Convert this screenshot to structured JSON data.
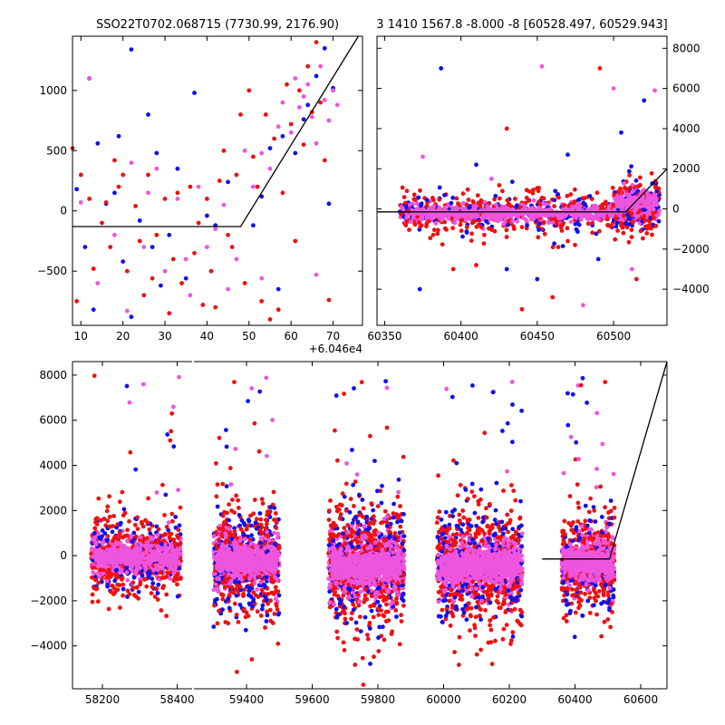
{
  "titles": {
    "left": "SSO22T0702.068715 (7730.99, 2176.90)",
    "right": "3 1410 1567.8 -8.000 -8 [60528.497, 60529.943]"
  },
  "colors": {
    "blue": "#1010ee",
    "red": "#ee1111",
    "magenta": "#ee55dd",
    "line": "#000000"
  },
  "chart_data": [
    {
      "type": "scatter",
      "panel": "top-left",
      "xlim": [
        8,
        77
      ],
      "ylim": [
        -950,
        1450
      ],
      "x_offset_label": "+6.046e4",
      "x_ticks": [
        10,
        20,
        30,
        40,
        50,
        60,
        70
      ],
      "y_ticks": [
        -500,
        0,
        500,
        1000
      ],
      "y_axis_side": "left",
      "series": [
        {
          "color": "blue",
          "points": [
            [
              22,
              1340
            ],
            [
              12,
              1100
            ],
            [
              37,
              980
            ],
            [
              26,
              800
            ],
            [
              19,
              620
            ],
            [
              14,
              560
            ],
            [
              28,
              480
            ],
            [
              33,
              350
            ],
            [
              45,
              240
            ],
            [
              9,
              180
            ],
            [
              16,
              60
            ],
            [
              24,
              -80
            ],
            [
              31,
              -200
            ],
            [
              42,
              -120
            ],
            [
              11,
              -300
            ],
            [
              20,
              -420
            ],
            [
              35,
              -560
            ],
            [
              29,
              -620
            ],
            [
              13,
              -820
            ],
            [
              22,
              -880
            ],
            [
              53,
              120
            ],
            [
              55,
              520
            ],
            [
              58,
              620
            ],
            [
              61,
              480
            ],
            [
              64,
              880
            ],
            [
              66,
              1120
            ],
            [
              68,
              1350
            ],
            [
              70,
              1020
            ],
            [
              63,
              760
            ],
            [
              69,
              60
            ],
            [
              57,
              -650
            ],
            [
              51,
              -120
            ],
            [
              40,
              -40
            ],
            [
              18,
              150
            ],
            [
              27,
              -300
            ]
          ]
        },
        {
          "color": "red",
          "points": [
            [
              8,
              520
            ],
            [
              10,
              300
            ],
            [
              12,
              100
            ],
            [
              15,
              -100
            ],
            [
              17,
              -300
            ],
            [
              19,
              200
            ],
            [
              21,
              -500
            ],
            [
              23,
              40
            ],
            [
              25,
              -700
            ],
            [
              26,
              300
            ],
            [
              28,
              -200
            ],
            [
              30,
              100
            ],
            [
              32,
              -400
            ],
            [
              34,
              -600
            ],
            [
              36,
              200
            ],
            [
              38,
              -100
            ],
            [
              40,
              100
            ],
            [
              42,
              -800
            ],
            [
              44,
              500
            ],
            [
              45,
              -200
            ],
            [
              47,
              300
            ],
            [
              48,
              800
            ],
            [
              49,
              -600
            ],
            [
              50,
              1000
            ],
            [
              52,
              200
            ],
            [
              53,
              -750
            ],
            [
              54,
              800
            ],
            [
              56,
              600
            ],
            [
              58,
              150
            ],
            [
              59,
              1050
            ],
            [
              60,
              720
            ],
            [
              61,
              -250
            ],
            [
              62,
              1000
            ],
            [
              63,
              550
            ],
            [
              64,
              1200
            ],
            [
              65,
              820
            ],
            [
              66,
              1400
            ],
            [
              67,
              900
            ],
            [
              68,
              420
            ],
            [
              69,
              -740
            ],
            [
              57,
              -820
            ],
            [
              55,
              -900
            ],
            [
              9,
              -750
            ],
            [
              13,
              -480
            ],
            [
              18,
              420
            ],
            [
              24,
              -250
            ],
            [
              33,
              150
            ],
            [
              37,
              -350
            ],
            [
              41,
              -500
            ],
            [
              46,
              -300
            ],
            [
              43,
              250
            ],
            [
              51,
              450
            ],
            [
              31,
              -850
            ],
            [
              16,
              70
            ],
            [
              27,
              -560
            ],
            [
              39,
              -780
            ],
            [
              20,
              300
            ]
          ]
        },
        {
          "color": "magenta",
          "points": [
            [
              12,
              1100
            ],
            [
              14,
              -600
            ],
            [
              18,
              -200
            ],
            [
              22,
              400
            ],
            [
              25,
              -300
            ],
            [
              28,
              350
            ],
            [
              30,
              -500
            ],
            [
              33,
              100
            ],
            [
              35,
              -400
            ],
            [
              36,
              -700
            ],
            [
              38,
              200
            ],
            [
              40,
              -300
            ],
            [
              42,
              -150
            ],
            [
              44,
              50
            ],
            [
              47,
              -400
            ],
            [
              49,
              500
            ],
            [
              51,
              200
            ],
            [
              53,
              480
            ],
            [
              55,
              350
            ],
            [
              57,
              700
            ],
            [
              58,
              900
            ],
            [
              60,
              650
            ],
            [
              61,
              1100
            ],
            [
              62,
              860
            ],
            [
              63,
              950
            ],
            [
              64,
              1050
            ],
            [
              65,
              780
            ],
            [
              66,
              560
            ],
            [
              67,
              1200
            ],
            [
              68,
              920
            ],
            [
              69,
              750
            ],
            [
              70,
              1000
            ],
            [
              71,
              880
            ],
            [
              53,
              -560
            ],
            [
              10,
              70
            ],
            [
              21,
              -830
            ],
            [
              66,
              -530
            ],
            [
              26,
              150
            ],
            [
              45,
              -650
            ]
          ]
        }
      ],
      "fit_line": [
        [
          8,
          -130
        ],
        [
          48,
          -130
        ],
        [
          76,
          1450
        ]
      ]
    },
    {
      "type": "scatter",
      "panel": "top-right",
      "xlim": [
        60345,
        60535
      ],
      "ylim": [
        -5800,
        8600
      ],
      "x_ticks": [
        60350,
        60400,
        60450,
        60500
      ],
      "y_ticks": [
        -4000,
        -2000,
        0,
        2000,
        4000,
        6000,
        8000
      ],
      "y_axis_side": "right",
      "clusters": [
        {
          "x": [
            60360,
            60530
          ],
          "y_mean": -200,
          "y_sd": 550,
          "n": 1100
        },
        {
          "x": [
            60500,
            60530
          ],
          "y_mean": 350,
          "y_sd": 700,
          "n": 220
        }
      ],
      "outliers": [
        {
          "color": "blue",
          "points": [
            [
              60387,
              7000
            ],
            [
              60373,
              -4000
            ],
            [
              60410,
              2200
            ],
            [
              60430,
              -3000
            ],
            [
              60470,
              2700
            ],
            [
              60490,
              -2500
            ],
            [
              60520,
              5400
            ],
            [
              60450,
              -3500
            ],
            [
              60505,
              3800
            ]
          ]
        },
        {
          "color": "magenta",
          "points": [
            [
              60453,
              7100
            ],
            [
              60500,
              6000
            ],
            [
              60527,
              5900
            ],
            [
              60375,
              2600
            ],
            [
              60480,
              -4800
            ],
            [
              60420,
              1500
            ],
            [
              60512,
              -3000
            ]
          ]
        },
        {
          "color": "red",
          "points": [
            [
              60491,
              7000
            ],
            [
              60440,
              -5000
            ],
            [
              60460,
              -4400
            ],
            [
              60430,
              4000
            ],
            [
              60470,
              -1600
            ],
            [
              60410,
              -2800
            ],
            [
              60395,
              -3000
            ],
            [
              60515,
              -3500
            ]
          ]
        }
      ],
      "fit_line": [
        [
          60345,
          -150
        ],
        [
          60508,
          -150
        ],
        [
          60535,
          2000
        ]
      ]
    },
    {
      "type": "scatter",
      "panel": "bottom",
      "broken_axis": true,
      "segments": [
        {
          "xlim": [
            58120,
            58440
          ],
          "x_ticks": [
            58200,
            58400
          ]
        },
        {
          "xlim": [
            59240,
            60680
          ],
          "x_ticks": [
            59400,
            59600,
            59800,
            60000,
            60200,
            60400,
            60600
          ]
        }
      ],
      "ylim": [
        -5900,
        8600
      ],
      "y_ticks": [
        -4000,
        -2000,
        0,
        2000,
        4000,
        6000,
        8000
      ],
      "clusters": [
        {
          "x": [
            58170,
            58410
          ],
          "y_mean": -50,
          "y_sd": 950,
          "n": 1000
        },
        {
          "x": [
            59300,
            59500
          ],
          "y_mean": -300,
          "y_sd": 1300,
          "n": 1100
        },
        {
          "x": [
            59650,
            59880
          ],
          "y_mean": -450,
          "y_sd": 1500,
          "n": 1300
        },
        {
          "x": [
            59980,
            60240
          ],
          "y_mean": -450,
          "y_sd": 1400,
          "n": 1300
        },
        {
          "x": [
            60360,
            60520
          ],
          "y_mean": -300,
          "y_sd": 1200,
          "n": 900
        }
      ],
      "fit_line": [
        [
          60300,
          -150
        ],
        [
          60505,
          -150
        ],
        [
          60680,
          8600
        ]
      ]
    }
  ]
}
